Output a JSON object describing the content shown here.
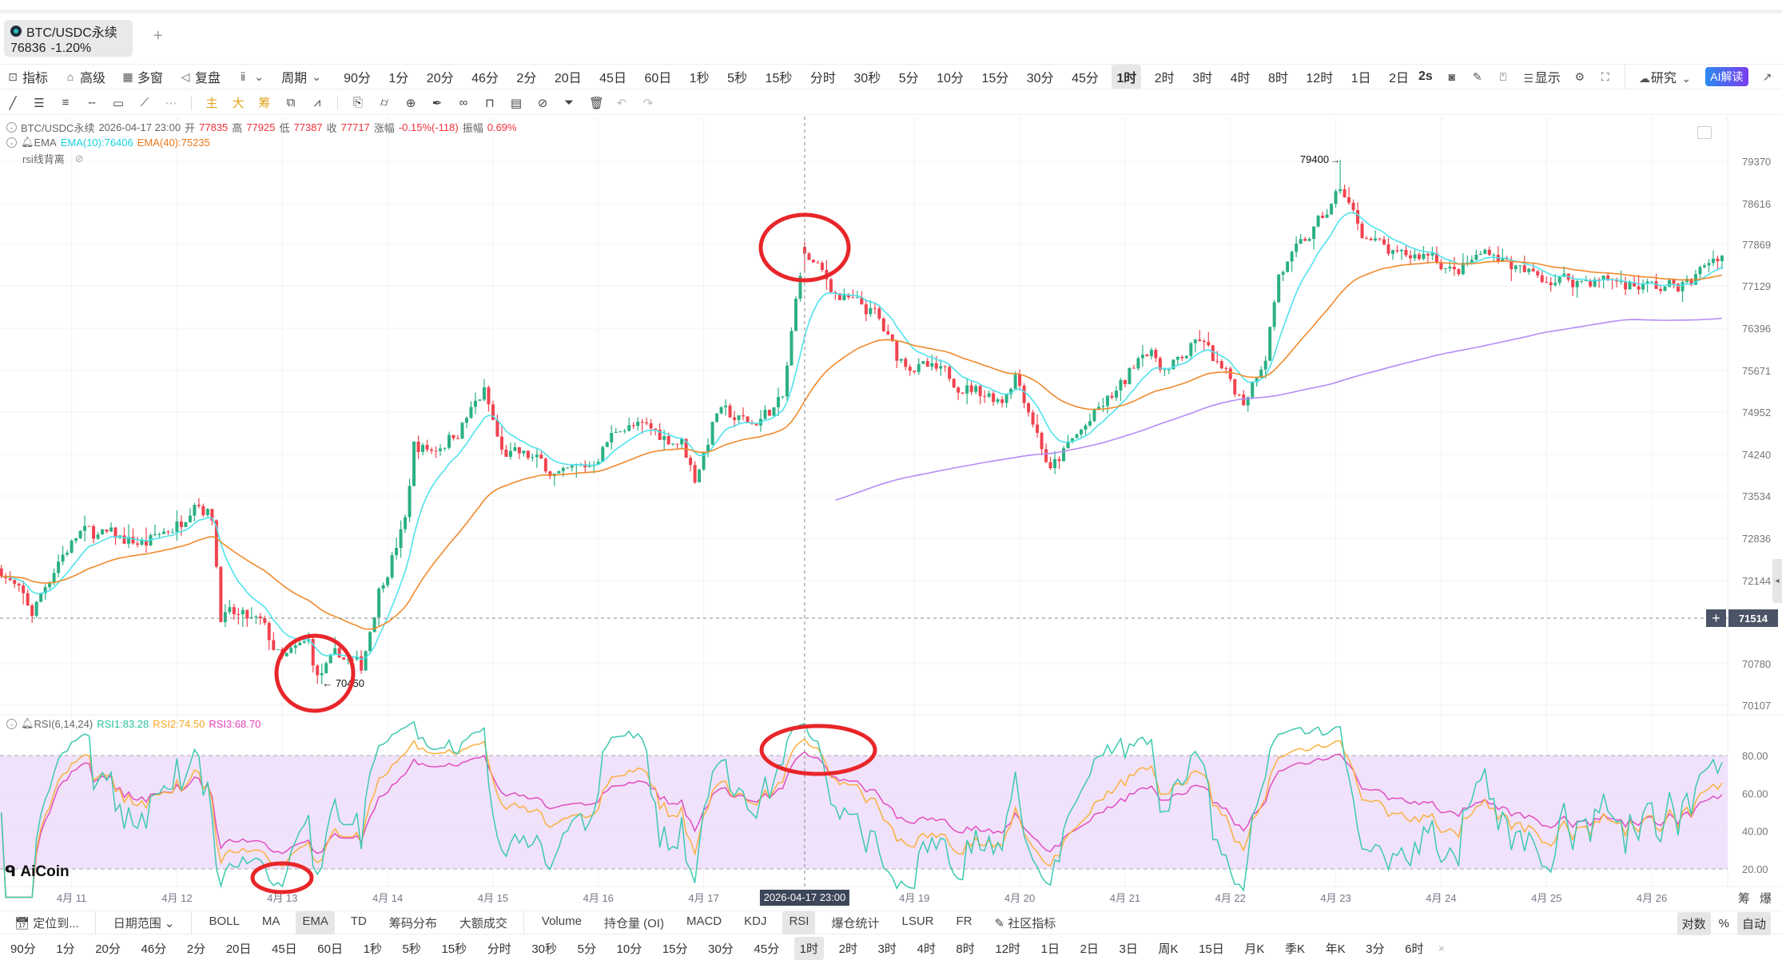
{
  "tab": {
    "symbol": "BTC/USDC永续",
    "price": "76836",
    "change": "-1.20%",
    "add": "+"
  },
  "toolbar": {
    "indicators": "指标",
    "advanced": "高级",
    "multi_window": "多窗",
    "replay": "复盘",
    "period": "周期",
    "periods": [
      "90分",
      "1分",
      "20分",
      "46分",
      "2分",
      "20日",
      "45日",
      "60日",
      "1秒",
      "5秒",
      "15秒",
      "分时",
      "30秒",
      "5分",
      "10分",
      "15分",
      "30分",
      "45分",
      "1时",
      "2时",
      "3时",
      "4时",
      "8时",
      "12时",
      "1日",
      "2日"
    ],
    "selected_period": "1时",
    "refresh": "2s",
    "display": "显示",
    "research": "研究",
    "ai": "AI解读"
  },
  "drawing_tools": {
    "main": "主",
    "big": "大",
    "chip": "筹"
  },
  "chart_info": {
    "symbol": "BTC/USDC永续",
    "time": "2026-04-17 23:00",
    "open_label": "开",
    "open": "77835",
    "high_label": "高",
    "high": "77925",
    "low_label": "低",
    "low": "77387",
    "close_label": "收",
    "close": "77717",
    "change_label": "涨幅",
    "change": "-0.15%(-118)",
    "amp_label": "振幅",
    "amp": "0.69%",
    "ema_label": "EMA",
    "ema10": "EMA(10):76406",
    "ema40": "EMA(40):75235",
    "custom_indicator": "rsi线背离"
  },
  "rsi_info": {
    "label": "RSI(6,14,24)",
    "rsi1": "RSI1:83.28",
    "rsi2": "RSI2:74.50",
    "rsi3": "RSI3:68.70"
  },
  "watermark": "AiCoin",
  "colors": {
    "up": "#2bb084",
    "down": "#f0434f",
    "ema10": "#4fe3ee",
    "ema40": "#f08a2c",
    "long_line": "#b58cf5",
    "rsi1": "#3cc9b0",
    "rsi2": "#f9b040",
    "rsi3": "#e04fc0",
    "annotation": "#e8262a",
    "rsi_band": "#f1e2fb"
  },
  "chart_data": {
    "type": "candlestick",
    "interval": "1h",
    "scale": "log",
    "price_ticks": [
      "79370",
      "78616",
      "77869",
      "77129",
      "76396",
      "75671",
      "74952",
      "74240",
      "73534",
      "72836",
      "72144",
      "70780",
      "70107"
    ],
    "crosshair_price": "71514",
    "crosshair_time": "2026-04-17 23:00",
    "marked_high": "79400",
    "marked_low": "← 70450",
    "date_ticks": [
      "4月 11",
      "4月 12",
      "4月 13",
      "4月 14",
      "4月 15",
      "4月 16",
      "4月 17",
      "4月 19",
      "4月 20",
      "4月 21",
      "4月 22",
      "4月 23",
      "4月 24",
      "4月 25",
      "4月 26"
    ],
    "rsi_ticks": [
      "80.00",
      "60.00",
      "40.00",
      "20.00"
    ],
    "rsi_periods": [
      6,
      14,
      24
    ],
    "ema_periods": [
      10,
      40
    ],
    "approx_close_path": [
      [
        "04-10 08:00",
        72330
      ],
      [
        "04-10 15:00",
        71590
      ],
      [
        "04-10 21:00",
        72500
      ],
      [
        "04-11 02:00",
        72920
      ],
      [
        "04-11 10:00",
        72830
      ],
      [
        "04-11 17:00",
        72740
      ],
      [
        "04-12 01:00",
        73120
      ],
      [
        "04-12 04:00",
        73570
      ],
      [
        "04-12 08:00",
        73200
      ],
      [
        "04-12 10:00",
        71600
      ],
      [
        "04-12 19:00",
        71400
      ],
      [
        "04-13 00:00",
        70800
      ],
      [
        "04-13 06:00",
        71100
      ],
      [
        "04-13 08:00",
        70550
      ],
      [
        "04-13 13:00",
        70900
      ],
      [
        "04-13 18:00",
        70700
      ],
      [
        "04-13 22:00",
        72000
      ],
      [
        "04-14 04:00",
        73100
      ],
      [
        "04-14 06:00",
        74400
      ],
      [
        "04-14 10:00",
        74300
      ],
      [
        "04-14 16:00",
        74650
      ],
      [
        "04-14 22:00",
        75300
      ],
      [
        "04-15 02:00",
        74250
      ],
      [
        "04-15 09:00",
        74150
      ],
      [
        "04-15 16:00",
        73850
      ],
      [
        "04-15 22:00",
        74050
      ],
      [
        "04-16 05:00",
        74750
      ],
      [
        "04-16 11:00",
        74650
      ],
      [
        "04-16 19:00",
        74450
      ],
      [
        "04-16 22:00",
        73850
      ],
      [
        "04-17 03:00",
        74950
      ],
      [
        "04-17 11:00",
        74750
      ],
      [
        "04-17 18:00",
        75150
      ],
      [
        "04-17 22:00",
        77400
      ],
      [
        "04-17 23:00",
        77717
      ],
      [
        "04-18 07:00",
        76950
      ],
      [
        "04-18 15:00",
        76650
      ],
      [
        "04-18 20:00",
        75900
      ],
      [
        "04-19 04:00",
        75650
      ],
      [
        "04-19 14:00",
        75350
      ],
      [
        "04-19 20:00",
        75200
      ],
      [
        "04-19 23:00",
        75650
      ],
      [
        "04-20 03:00",
        74850
      ],
      [
        "04-20 07:00",
        73950
      ],
      [
        "04-20 12:00",
        74450
      ],
      [
        "04-20 19:00",
        75050
      ],
      [
        "04-21 00:00",
        75450
      ],
      [
        "04-21 04:00",
        76100
      ],
      [
        "04-21 10:00",
        75650
      ],
      [
        "04-21 17:00",
        76200
      ],
      [
        "04-21 22:00",
        75650
      ],
      [
        "04-22 03:00",
        75150
      ],
      [
        "04-22 08:00",
        76000
      ],
      [
        "04-22 11:00",
        77350
      ],
      [
        "04-22 16:00",
        77800
      ],
      [
        "04-22 23:00",
        78550
      ],
      [
        "04-23 01:00",
        78900
      ],
      [
        "04-23 06:00",
        78100
      ],
      [
        "04-23 14:00",
        77600
      ],
      [
        "04-23 22:00",
        77750
      ],
      [
        "04-24 03:00",
        77350
      ],
      [
        "04-24 11:00",
        77800
      ],
      [
        "04-24 19:00",
        77350
      ],
      [
        "04-25 05:00",
        77250
      ],
      [
        "04-25 15:00",
        77250
      ],
      [
        "04-26 02:00",
        77100
      ],
      [
        "04-26 09:00",
        77200
      ],
      [
        "04-26 13:00",
        77600
      ],
      [
        "04-26 16:00",
        77750
      ]
    ]
  },
  "bottom": {
    "locate": "定位到...",
    "date_range": "日期范围",
    "main_indicators": [
      "BOLL",
      "MA",
      "EMA",
      "TD",
      "筹码分布",
      "大额成交"
    ],
    "sub_indicators": [
      "Volume",
      "持仓量 (OI)",
      "MACD",
      "KDJ",
      "RSI",
      "爆仓统计",
      "LSUR",
      "FR"
    ],
    "community": "社区指标",
    "log": "对数",
    "percent": "%",
    "auto": "自动",
    "side_labels": [
      "筹",
      "爆"
    ],
    "periods": [
      "90分",
      "1分",
      "20分",
      "46分",
      "2分",
      "20日",
      "45日",
      "60日",
      "1秒",
      "5秒",
      "15秒",
      "分时",
      "30秒",
      "5分",
      "10分",
      "15分",
      "30分",
      "45分",
      "1时",
      "2时",
      "3时",
      "4时",
      "8时",
      "12时",
      "1日",
      "2日",
      "3日",
      "周K",
      "15日",
      "月K",
      "季K",
      "年K",
      "3分",
      "6时"
    ],
    "close": "×"
  }
}
